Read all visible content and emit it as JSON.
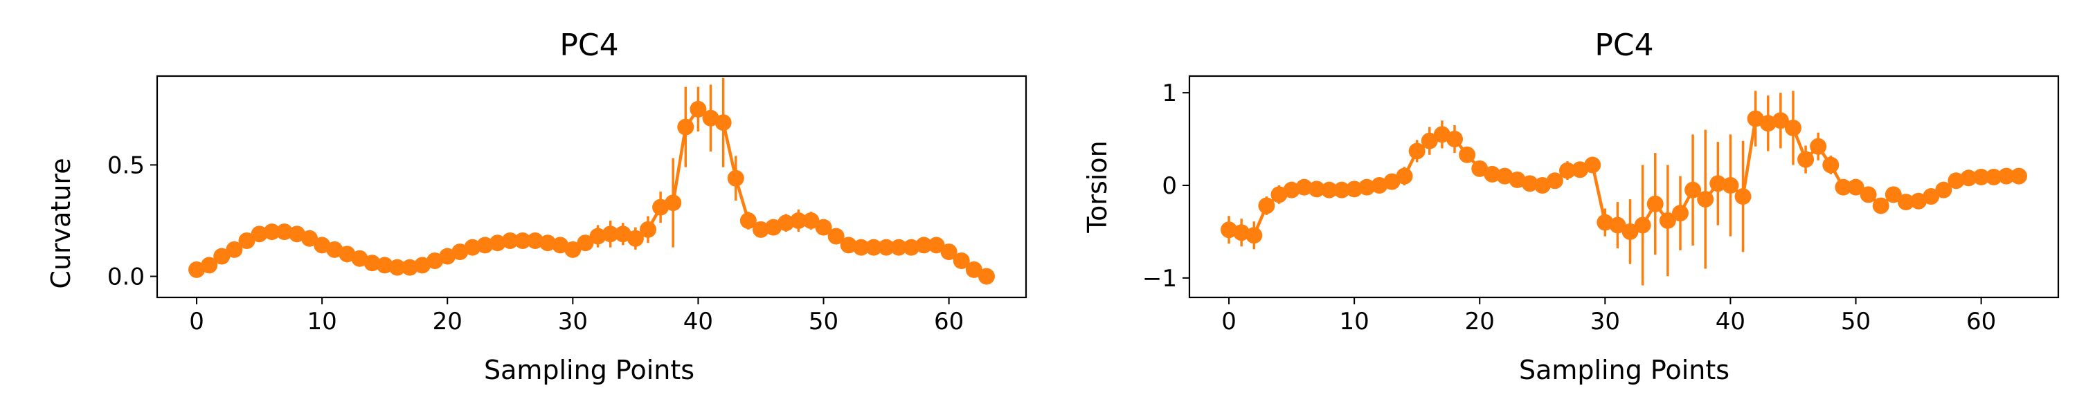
{
  "chart_data": [
    {
      "type": "line",
      "title": "PC4",
      "xlabel": "Sampling Points",
      "ylabel": "Curvature",
      "xlim": [
        -3.15,
        66.15
      ],
      "ylim": [
        -0.0945,
        0.8985
      ],
      "xticks": [
        0,
        10,
        20,
        30,
        40,
        50,
        60
      ],
      "yticks": [
        0.0,
        0.5
      ],
      "ytick_labels": [
        "0.0",
        "0.5"
      ],
      "color": "#ff7f0e",
      "marker": "circle",
      "series": [
        {
          "x": [
            0,
            1,
            2,
            3,
            4,
            5,
            6,
            7,
            8,
            9,
            10,
            11,
            12,
            13,
            14,
            15,
            16,
            17,
            18,
            19,
            20,
            21,
            22,
            23,
            24,
            25,
            26,
            27,
            28,
            29,
            30,
            31,
            32,
            33,
            34,
            35,
            36,
            37,
            38,
            39,
            40,
            41,
            42,
            43,
            44,
            45,
            46,
            47,
            48,
            49,
            50,
            51,
            52,
            53,
            54,
            55,
            56,
            57,
            58,
            59,
            60,
            61,
            62,
            63
          ],
          "y": [
            0.03,
            0.05,
            0.09,
            0.12,
            0.16,
            0.19,
            0.2,
            0.2,
            0.19,
            0.17,
            0.14,
            0.12,
            0.1,
            0.08,
            0.06,
            0.05,
            0.04,
            0.04,
            0.05,
            0.07,
            0.09,
            0.11,
            0.13,
            0.14,
            0.15,
            0.16,
            0.16,
            0.16,
            0.15,
            0.14,
            0.12,
            0.15,
            0.18,
            0.19,
            0.19,
            0.17,
            0.21,
            0.31,
            0.33,
            0.67,
            0.75,
            0.71,
            0.69,
            0.44,
            0.25,
            0.21,
            0.22,
            0.24,
            0.25,
            0.25,
            0.22,
            0.18,
            0.14,
            0.13,
            0.13,
            0.13,
            0.13,
            0.13,
            0.14,
            0.14,
            0.11,
            0.07,
            0.03,
            0.0
          ],
          "err": [
            0.01,
            0.01,
            0.01,
            0.01,
            0.01,
            0.01,
            0.01,
            0.01,
            0.01,
            0.01,
            0.01,
            0.01,
            0.01,
            0.01,
            0.01,
            0.01,
            0.01,
            0.01,
            0.01,
            0.01,
            0.01,
            0.01,
            0.01,
            0.01,
            0.01,
            0.01,
            0.01,
            0.01,
            0.01,
            0.01,
            0.02,
            0.03,
            0.05,
            0.06,
            0.05,
            0.05,
            0.06,
            0.07,
            0.2,
            0.18,
            0.1,
            0.15,
            0.2,
            0.1,
            0.04,
            0.03,
            0.03,
            0.04,
            0.05,
            0.04,
            0.03,
            0.02,
            0.02,
            0.01,
            0.01,
            0.01,
            0.01,
            0.01,
            0.02,
            0.02,
            0.02,
            0.01,
            0.01,
            0.01
          ]
        }
      ]
    },
    {
      "type": "line",
      "title": "PC4",
      "xlabel": "Sampling Points",
      "ylabel": "Torsion",
      "xlim": [
        -3.15,
        66.15
      ],
      "ylim": [
        -1.21,
        1.18
      ],
      "xticks": [
        0,
        10,
        20,
        30,
        40,
        50,
        60
      ],
      "yticks": [
        -1,
        0,
        1
      ],
      "ytick_labels": [
        "−1",
        "0",
        "1"
      ],
      "color": "#ff7f0e",
      "marker": "circle",
      "series": [
        {
          "x": [
            0,
            1,
            2,
            3,
            4,
            5,
            6,
            7,
            8,
            9,
            10,
            11,
            12,
            13,
            14,
            15,
            16,
            17,
            18,
            19,
            20,
            21,
            22,
            23,
            24,
            25,
            26,
            27,
            28,
            29,
            30,
            31,
            32,
            33,
            34,
            35,
            36,
            37,
            38,
            39,
            40,
            41,
            42,
            43,
            44,
            45,
            46,
            47,
            48,
            49,
            50,
            51,
            52,
            53,
            54,
            55,
            56,
            57,
            58,
            59,
            60,
            61,
            62,
            63
          ],
          "y": [
            -0.48,
            -0.51,
            -0.54,
            -0.22,
            -0.1,
            -0.05,
            -0.02,
            -0.04,
            -0.05,
            -0.05,
            -0.04,
            -0.02,
            0.0,
            0.04,
            0.1,
            0.37,
            0.48,
            0.55,
            0.5,
            0.33,
            0.18,
            0.12,
            0.1,
            0.06,
            0.02,
            0.0,
            0.05,
            0.16,
            0.17,
            0.22,
            -0.4,
            -0.43,
            -0.5,
            -0.43,
            -0.2,
            -0.38,
            -0.3,
            -0.05,
            -0.15,
            0.02,
            0.0,
            -0.12,
            0.72,
            0.67,
            0.7,
            0.62,
            0.28,
            0.42,
            0.22,
            -0.02,
            -0.02,
            -0.1,
            -0.22,
            -0.1,
            -0.18,
            -0.17,
            -0.12,
            -0.05,
            0.05,
            0.08,
            0.09,
            0.09,
            0.1,
            0.1
          ],
          "err": [
            0.15,
            0.15,
            0.15,
            0.1,
            0.1,
            0.08,
            0.06,
            0.05,
            0.05,
            0.05,
            0.05,
            0.05,
            0.05,
            0.07,
            0.1,
            0.12,
            0.15,
            0.15,
            0.15,
            0.08,
            0.06,
            0.05,
            0.05,
            0.05,
            0.05,
            0.08,
            0.08,
            0.1,
            0.08,
            0.08,
            0.15,
            0.25,
            0.35,
            0.65,
            0.55,
            0.6,
            0.4,
            0.6,
            0.75,
            0.45,
            0.55,
            0.6,
            0.3,
            0.3,
            0.3,
            0.4,
            0.15,
            0.15,
            0.1,
            0.05,
            0.05,
            0.05,
            0.08,
            0.05,
            0.04,
            0.04,
            0.05,
            0.08,
            0.08,
            0.07,
            0.05,
            0.05,
            0.05,
            0.05
          ]
        }
      ]
    }
  ]
}
